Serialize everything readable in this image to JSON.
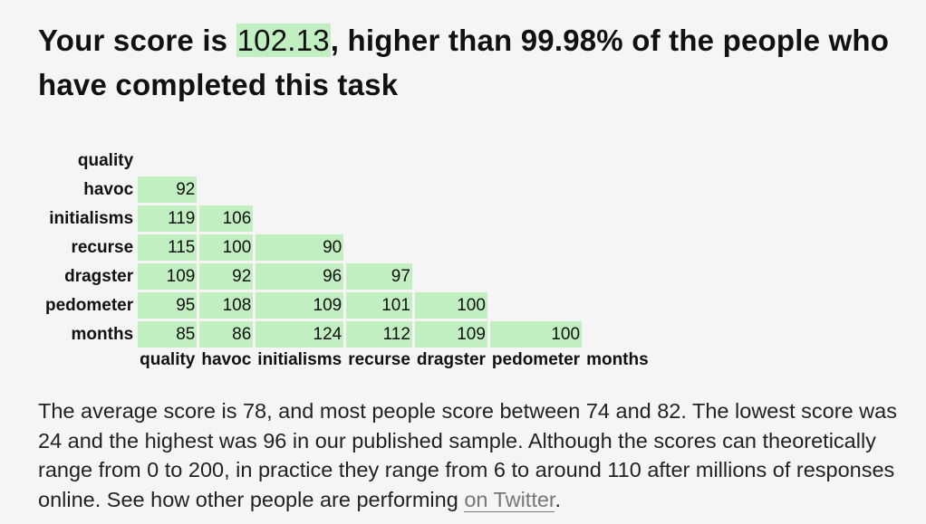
{
  "heading": {
    "prefix": "Your score is ",
    "score": "102.13",
    "suffix": ", higher than 99.98% of the people who have completed this task"
  },
  "matrix": {
    "row_labels": [
      "quality",
      "havoc",
      "initialisms",
      "recurse",
      "dragster",
      "pedometer",
      "months"
    ],
    "col_labels": [
      "quality",
      "havoc",
      "initialisms",
      "recurse",
      "dragster",
      "pedometer",
      "months"
    ],
    "rows": [
      [],
      [
        "92"
      ],
      [
        "119",
        "106"
      ],
      [
        "115",
        "100",
        "90"
      ],
      [
        "109",
        "92",
        "96",
        "97"
      ],
      [
        "95",
        "108",
        "109",
        "101",
        "100"
      ],
      [
        "85",
        "86",
        "124",
        "112",
        "109",
        "100"
      ]
    ]
  },
  "summary": {
    "text": "The average score is 78, and most people score between 74 and 82. The lowest score was 24 and the highest was 96 in our published sample. Although the scores can theoretically range from 0 to 200, in practice they range from 6 to around 110 after millions of responses online. See how other people are performing ",
    "link_label": "on Twitter",
    "end": "."
  },
  "colors": {
    "cell_fill": "#c2efc2",
    "background": "#f5f5f5",
    "link": "#777777"
  }
}
